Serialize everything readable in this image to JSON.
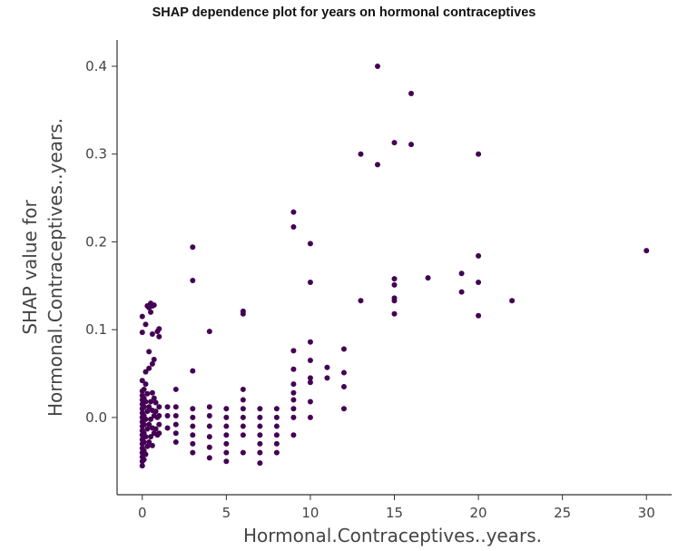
{
  "chart_data": {
    "type": "scatter",
    "title": "SHAP dependence plot for years on hormonal contraceptives",
    "xlabel": "Hormonal.Contraceptives..years.",
    "ylabel_lines": [
      "SHAP value for",
      "Hormonal.Contraceptives..years."
    ],
    "xlim": [
      -1.5,
      31.5
    ],
    "ylim": [
      -0.088,
      0.43
    ],
    "x_ticks": [
      0,
      5,
      10,
      15,
      20,
      25,
      30
    ],
    "x_tick_labels": [
      "0",
      "5",
      "10",
      "15",
      "20",
      "25",
      "30"
    ],
    "y_ticks": [
      0.0,
      0.1,
      0.2,
      0.3,
      0.4
    ],
    "y_tick_labels": [
      "0.0",
      "0.1",
      "0.2",
      "0.3",
      "0.4"
    ],
    "grid": false,
    "point_color": "#440154",
    "points": [
      [
        0,
        -0.055
      ],
      [
        0,
        -0.05
      ],
      [
        0,
        -0.045
      ],
      [
        0,
        -0.04
      ],
      [
        0,
        -0.035
      ],
      [
        0,
        -0.03
      ],
      [
        0,
        -0.025
      ],
      [
        0,
        -0.02
      ],
      [
        0,
        -0.015
      ],
      [
        0,
        -0.01
      ],
      [
        0,
        -0.005
      ],
      [
        0,
        0.0
      ],
      [
        0,
        0.005
      ],
      [
        0,
        0.01
      ],
      [
        0,
        0.015
      ],
      [
        0,
        0.02
      ],
      [
        0,
        0.025
      ],
      [
        0,
        0.03
      ],
      [
        0,
        0.042
      ],
      [
        0,
        0.097
      ],
      [
        0,
        0.115
      ],
      [
        0.1,
        -0.048
      ],
      [
        0.1,
        -0.038
      ],
      [
        0.1,
        -0.028
      ],
      [
        0.1,
        -0.018
      ],
      [
        0.1,
        -0.008
      ],
      [
        0.1,
        0.002
      ],
      [
        0.1,
        0.012
      ],
      [
        0.1,
        0.022
      ],
      [
        0.1,
        0.032
      ],
      [
        0.2,
        -0.042
      ],
      [
        0.2,
        -0.022
      ],
      [
        0.2,
        -0.002
      ],
      [
        0.2,
        0.018
      ],
      [
        0.2,
        0.038
      ],
      [
        0.2,
        0.052
      ],
      [
        0.2,
        0.106
      ],
      [
        0.3,
        -0.033
      ],
      [
        0.3,
        -0.013
      ],
      [
        0.3,
        0.007
      ],
      [
        0.3,
        0.027
      ],
      [
        0.3,
        0.127
      ],
      [
        0.4,
        -0.028
      ],
      [
        0.4,
        -0.008
      ],
      [
        0.4,
        0.012
      ],
      [
        0.4,
        0.056
      ],
      [
        0.4,
        0.075
      ],
      [
        0.4,
        0.125
      ],
      [
        0.5,
        -0.022
      ],
      [
        0.5,
        -0.002
      ],
      [
        0.5,
        0.018
      ],
      [
        0.5,
        0.13
      ],
      [
        0.5,
        0.12
      ],
      [
        0.6,
        -0.032
      ],
      [
        0.6,
        -0.012
      ],
      [
        0.6,
        0.008
      ],
      [
        0.6,
        0.028
      ],
      [
        0.6,
        0.061
      ],
      [
        0.6,
        0.095
      ],
      [
        0.6,
        0.127
      ],
      [
        0.7,
        -0.018
      ],
      [
        0.7,
        0.002
      ],
      [
        0.7,
        0.022
      ],
      [
        0.7,
        0.066
      ],
      [
        0.7,
        0.128
      ],
      [
        0.8,
        -0.013
      ],
      [
        0.8,
        0.007
      ],
      [
        0.8,
        0.017
      ],
      [
        0.9,
        -0.02
      ],
      [
        0.9,
        0.0
      ],
      [
        0.9,
        0.098
      ],
      [
        1,
        -0.018
      ],
      [
        1,
        -0.008
      ],
      [
        1,
        0.002
      ],
      [
        1,
        0.012
      ],
      [
        1,
        0.092
      ],
      [
        1,
        0.101
      ],
      [
        1.5,
        -0.012
      ],
      [
        1.5,
        0.002
      ],
      [
        1.5,
        0.012
      ],
      [
        2,
        -0.028
      ],
      [
        2,
        -0.018
      ],
      [
        2,
        -0.008
      ],
      [
        2,
        0.002
      ],
      [
        2,
        0.012
      ],
      [
        2,
        0.032
      ],
      [
        3,
        -0.04
      ],
      [
        3,
        -0.03
      ],
      [
        3,
        -0.02
      ],
      [
        3,
        -0.01
      ],
      [
        3,
        0.0
      ],
      [
        3,
        0.01
      ],
      [
        3,
        0.053
      ],
      [
        3,
        0.156
      ],
      [
        3,
        0.194
      ],
      [
        4,
        -0.046
      ],
      [
        4,
        -0.034
      ],
      [
        4,
        -0.022
      ],
      [
        4,
        -0.01
      ],
      [
        4,
        0.002
      ],
      [
        4,
        0.012
      ],
      [
        4,
        0.098
      ],
      [
        5,
        -0.05
      ],
      [
        5,
        -0.04
      ],
      [
        5,
        -0.03
      ],
      [
        5,
        -0.02
      ],
      [
        5,
        -0.01
      ],
      [
        5,
        0.0
      ],
      [
        5,
        0.01
      ],
      [
        6,
        -0.04
      ],
      [
        6,
        -0.02
      ],
      [
        6,
        -0.01
      ],
      [
        6,
        0.0
      ],
      [
        6,
        0.01
      ],
      [
        6,
        0.02
      ],
      [
        6,
        0.032
      ],
      [
        6,
        0.118
      ],
      [
        6,
        0.121
      ],
      [
        7,
        -0.052
      ],
      [
        7,
        -0.04
      ],
      [
        7,
        -0.03
      ],
      [
        7,
        -0.02
      ],
      [
        7,
        -0.01
      ],
      [
        7,
        0.0
      ],
      [
        7,
        0.01
      ],
      [
        8,
        -0.04
      ],
      [
        8,
        -0.03
      ],
      [
        8,
        -0.02
      ],
      [
        8,
        -0.01
      ],
      [
        8,
        0.0
      ],
      [
        8,
        0.01
      ],
      [
        9,
        -0.02
      ],
      [
        9,
        0.0
      ],
      [
        9,
        0.01
      ],
      [
        9,
        0.02
      ],
      [
        9,
        0.028
      ],
      [
        9,
        0.038
      ],
      [
        9,
        0.055
      ],
      [
        9,
        0.076
      ],
      [
        9,
        0.217
      ],
      [
        9,
        0.234
      ],
      [
        10,
        0.0
      ],
      [
        10,
        0.018
      ],
      [
        10,
        0.04
      ],
      [
        10,
        0.045
      ],
      [
        10,
        0.065
      ],
      [
        10,
        0.086
      ],
      [
        10,
        0.154
      ],
      [
        10,
        0.198
      ],
      [
        11,
        0.045
      ],
      [
        11,
        0.057
      ],
      [
        12,
        0.01
      ],
      [
        12,
        0.035
      ],
      [
        12,
        0.051
      ],
      [
        12,
        0.078
      ],
      [
        13,
        0.133
      ],
      [
        13,
        0.3
      ],
      [
        14,
        0.288
      ],
      [
        14,
        0.4
      ],
      [
        15,
        0.118
      ],
      [
        15,
        0.133
      ],
      [
        15,
        0.136
      ],
      [
        15,
        0.151
      ],
      [
        15,
        0.158
      ],
      [
        15,
        0.313
      ],
      [
        16,
        0.311
      ],
      [
        16,
        0.369
      ],
      [
        17,
        0.159
      ],
      [
        19,
        0.143
      ],
      [
        19,
        0.164
      ],
      [
        20,
        0.116
      ],
      [
        20,
        0.154
      ],
      [
        20,
        0.184
      ],
      [
        20,
        0.3
      ],
      [
        22,
        0.133
      ],
      [
        30,
        0.19
      ]
    ]
  }
}
